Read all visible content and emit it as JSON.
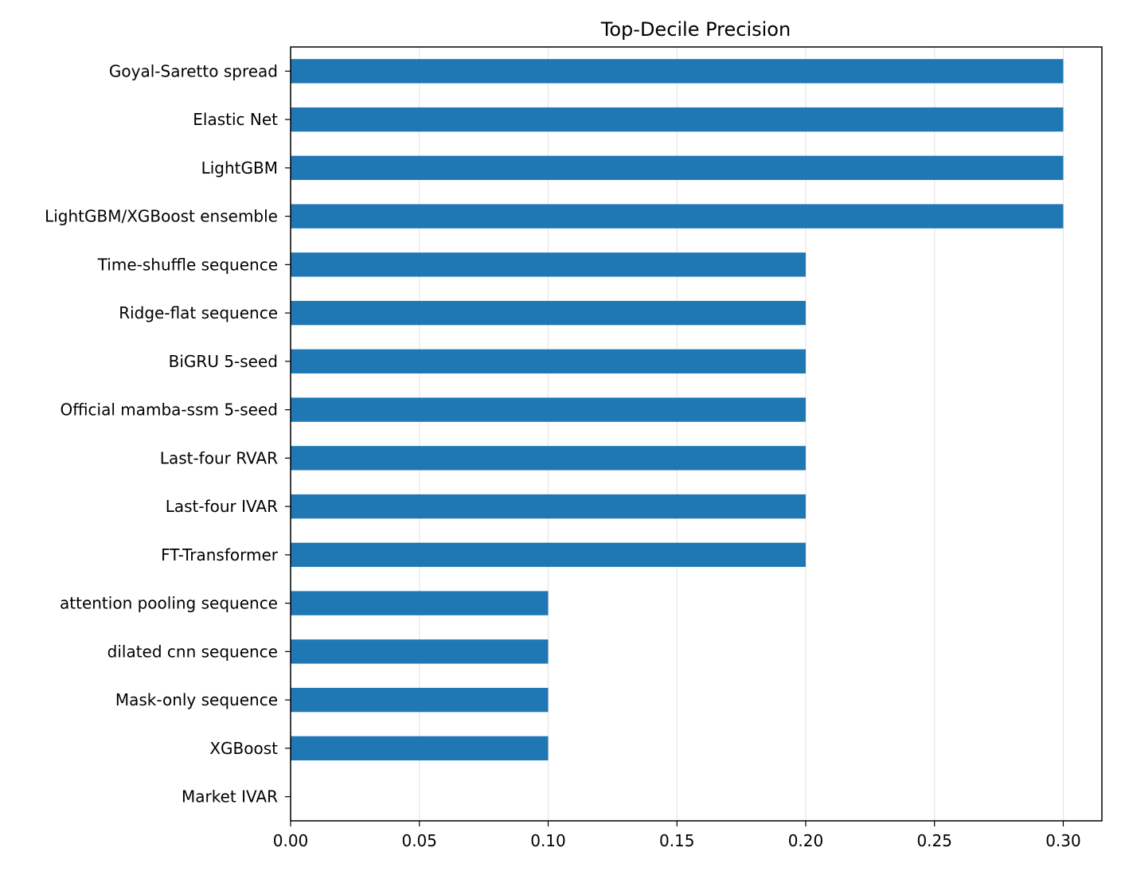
{
  "chart_data": {
    "type": "bar",
    "orientation": "horizontal",
    "title": "Top-Decile Precision",
    "xlabel": "",
    "ylabel": "",
    "categories": [
      "Goyal-Saretto spread",
      "Elastic Net",
      "LightGBM",
      "LightGBM/XGBoost ensemble",
      "Time-shuffle sequence",
      "Ridge-flat sequence",
      "BiGRU 5-seed",
      "Official mamba-ssm 5-seed",
      "Last-four RVAR",
      "Last-four IVAR",
      "FT-Transformer",
      "attention pooling sequence",
      "dilated cnn sequence",
      "Mask-only sequence",
      "XGBoost",
      "Market IVAR"
    ],
    "values": [
      0.3,
      0.3,
      0.3,
      0.3,
      0.2,
      0.2,
      0.2,
      0.2,
      0.2,
      0.2,
      0.2,
      0.1,
      0.1,
      0.1,
      0.1,
      0.0
    ],
    "xlim": [
      0.0,
      0.315
    ],
    "xticks": [
      "0.00",
      "0.05",
      "0.10",
      "0.15",
      "0.20",
      "0.25",
      "0.30"
    ],
    "grid": "vertical",
    "legend": "none",
    "bar_color": "#1f77b4"
  }
}
